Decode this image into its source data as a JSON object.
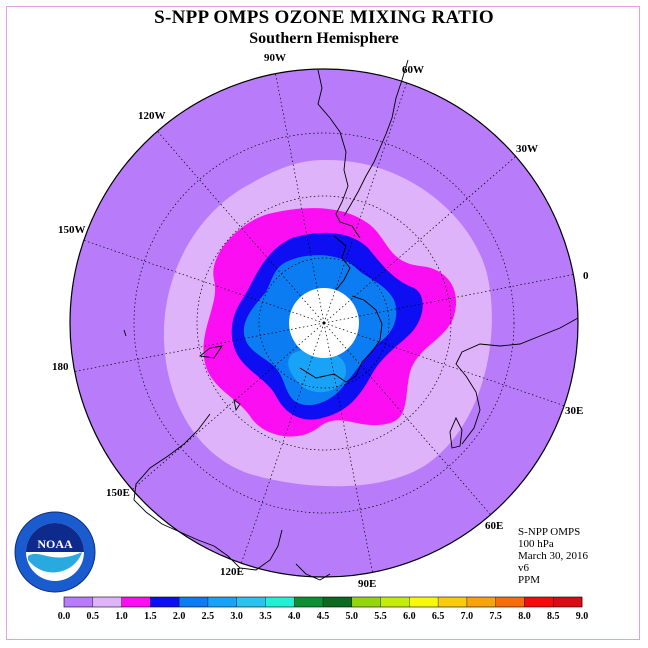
{
  "title": "S-NPP OMPS OZONE MIXING RATIO",
  "subtitle": "Southern Hemisphere",
  "longitude_labels": [
    "90W",
    "60W",
    "30W",
    "0",
    "30E",
    "60E",
    "90E",
    "120E",
    "150E",
    "180",
    "150W",
    "120W"
  ],
  "info": {
    "instrument": "S-NPP OMPS",
    "pressure": "100 hPa",
    "date": "March 30, 2016",
    "version": "v6",
    "units": "PPM"
  },
  "logo_text": "NOAA",
  "colorbar": {
    "ticks": [
      "0.0",
      "0.5",
      "1.0",
      "1.5",
      "2.0",
      "2.5",
      "3.0",
      "3.5",
      "4.0",
      "4.5",
      "5.0",
      "5.5",
      "6.0",
      "6.5",
      "7.0",
      "7.5",
      "8.0",
      "8.5",
      "9.0"
    ],
    "colors": [
      "#b87cfb",
      "#dfb3fa",
      "#fb0ef2",
      "#0d0ef2",
      "#0b7cf2",
      "#18a2f8",
      "#29c3ee",
      "#21f0d5",
      "#0b8f32",
      "#0b6a1f",
      "#95d50d",
      "#c4ec0b",
      "#f8f80c",
      "#f8cc0b",
      "#f6a40b",
      "#f66e0b",
      "#f40b0b",
      "#d80b16",
      "#7a4a2b"
    ]
  },
  "map_colors": {
    "bg": "#b87cfb",
    "c05": "#dfb3fa",
    "c10": "#fb0ef2",
    "c15": "#0d0ef2",
    "c20": "#0b7cf2",
    "c25": "#18a2f8",
    "pole": "#ffffff",
    "coast": "#000000"
  }
}
